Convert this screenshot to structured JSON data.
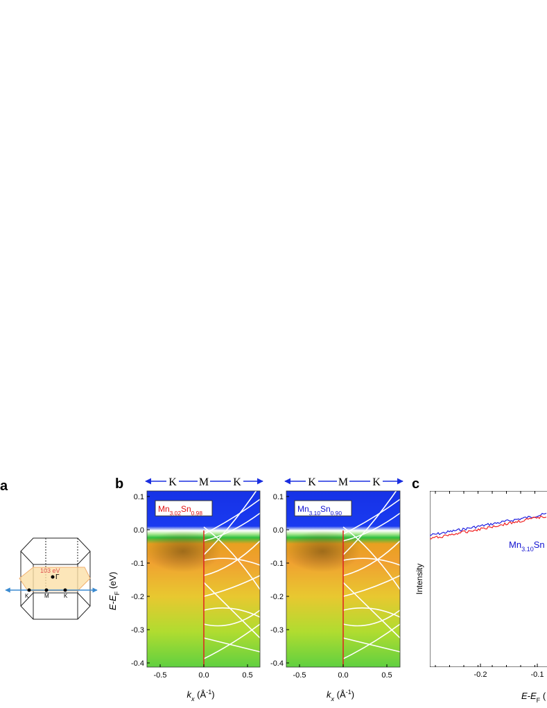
{
  "panel_a": {
    "label": "a",
    "photon_energy": "103 eV",
    "gamma": "Γ",
    "points": [
      "K",
      "M",
      "K"
    ]
  },
  "panel_b": {
    "label": "b",
    "path": [
      "K",
      "M",
      "K"
    ],
    "images": [
      {
        "sample": [
          "Mn",
          "3.02",
          "Sn",
          "0.98"
        ]
      },
      {
        "sample": [
          "Mn",
          "3.10",
          "Sn",
          "0.90"
        ]
      }
    ],
    "yticks": [
      "0.1",
      "0.0",
      "-0.1",
      "-0.2",
      "-0.3",
      "-0.4"
    ],
    "xticks": [
      "-0.5",
      "0.0",
      "0.5"
    ],
    "ylabel": [
      "E-E",
      "F",
      " (eV)"
    ],
    "xlabel": [
      "k",
      "x",
      " (Å",
      "-1",
      ")"
    ]
  },
  "panel_c": {
    "label": "c",
    "ylabel": "Intensity",
    "xticks": [
      "-0.2",
      "-0.1"
    ],
    "legend": [
      "Mn",
      "3.10",
      "Sn"
    ],
    "xlabel": [
      "E-E",
      "F",
      " ("
    ]
  }
}
